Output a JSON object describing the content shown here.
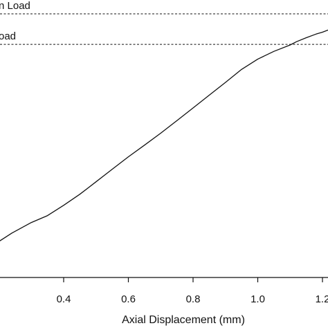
{
  "chart_data": {
    "type": "line",
    "xlabel": "Axial Displacement (mm)",
    "ylabel": "",
    "title": "",
    "xlim": [
      0.2,
      1.22
    ],
    "x_ticks": [
      "0.4",
      "0.6",
      "0.8",
      "1.0",
      "1.2"
    ],
    "x_tick_values": [
      0.4,
      0.6,
      0.8,
      1.0,
      1.2
    ],
    "reference_lines": [
      {
        "label": "n Load",
        "level": 0.95
      },
      {
        "label": "oad",
        "level": 0.84
      }
    ],
    "series": [
      {
        "x": [
          0.2,
          0.24,
          0.3,
          0.35,
          0.4,
          0.45,
          0.5,
          0.55,
          0.6,
          0.65,
          0.7,
          0.75,
          0.8,
          0.85,
          0.9,
          0.95,
          1.0,
          1.05,
          1.1,
          1.12,
          1.15,
          1.18,
          1.2,
          1.22
        ],
        "y": [
          0.13,
          0.16,
          0.198,
          0.223,
          0.26,
          0.3,
          0.345,
          0.39,
          0.435,
          0.477,
          0.52,
          0.565,
          0.611,
          0.657,
          0.703,
          0.75,
          0.787,
          0.815,
          0.838,
          0.85,
          0.864,
          0.877,
          0.884,
          0.893
        ]
      }
    ],
    "line_color": "#111111"
  }
}
